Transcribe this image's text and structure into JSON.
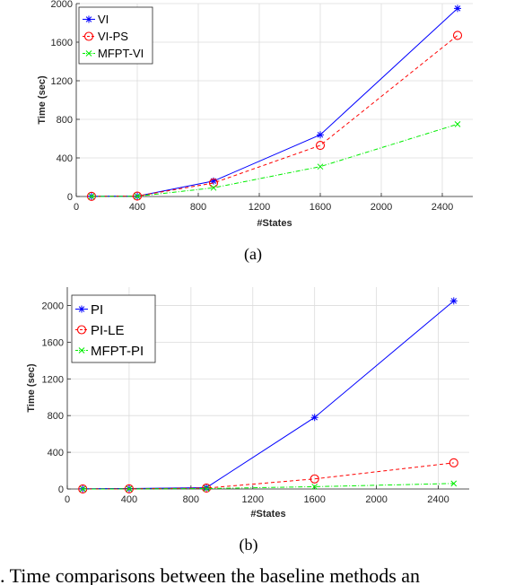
{
  "panels": [
    {
      "chart_data": {
        "type": "line",
        "x": [
          100,
          400,
          900,
          1600,
          2500
        ],
        "series": [
          {
            "name": "VI",
            "values": [
              2,
              4,
              160,
              640,
              1950
            ],
            "color": "#0000ff",
            "marker": "asterisk",
            "dash": "solid"
          },
          {
            "name": "VI-PS",
            "values": [
              2,
              4,
              140,
              530,
              1670
            ],
            "color": "#ff0000",
            "marker": "circle",
            "dash": "dashed"
          },
          {
            "name": "MFPT-VI",
            "values": [
              1,
              2,
              90,
              310,
              750
            ],
            "color": "#00ee00",
            "marker": "x",
            "dash": "dashdot"
          }
        ],
        "xlabel": "#States",
        "ylabel": "Time (sec)",
        "xlim": [
          0,
          2600
        ],
        "ylim": [
          0,
          2000
        ],
        "xticks": [
          0,
          400,
          800,
          1200,
          1600,
          2000,
          2400
        ],
        "yticks": [
          0,
          400,
          800,
          1200,
          1600,
          2000
        ],
        "grid": true,
        "legend_position": "top-left"
      },
      "caption": "(a)"
    },
    {
      "chart_data": {
        "type": "line",
        "x": [
          100,
          400,
          900,
          1600,
          2500
        ],
        "series": [
          {
            "name": "PI",
            "values": [
              3,
              5,
              15,
              780,
              2050
            ],
            "color": "#0000ff",
            "marker": "asterisk",
            "dash": "solid"
          },
          {
            "name": "PI-LE",
            "values": [
              1,
              2,
              10,
              110,
              285
            ],
            "color": "#ff0000",
            "marker": "circle",
            "dash": "dashed"
          },
          {
            "name": "MFPT-PI",
            "values": [
              0,
              1,
              5,
              25,
              60
            ],
            "color": "#00ee00",
            "marker": "x",
            "dash": "dashdot"
          }
        ],
        "xlabel": "#States",
        "ylabel": "Time (sec)",
        "xlim": [
          0,
          2600
        ],
        "ylim": [
          0,
          2200
        ],
        "xticks": [
          0,
          400,
          800,
          1200,
          1600,
          2000,
          2400
        ],
        "yticks": [
          0,
          400,
          800,
          1200,
          1600,
          2000
        ],
        "grid": true,
        "legend_position": "top-left"
      },
      "caption": "(b)"
    }
  ],
  "figure_caption": ".   Time comparisons between the baseline methods an"
}
